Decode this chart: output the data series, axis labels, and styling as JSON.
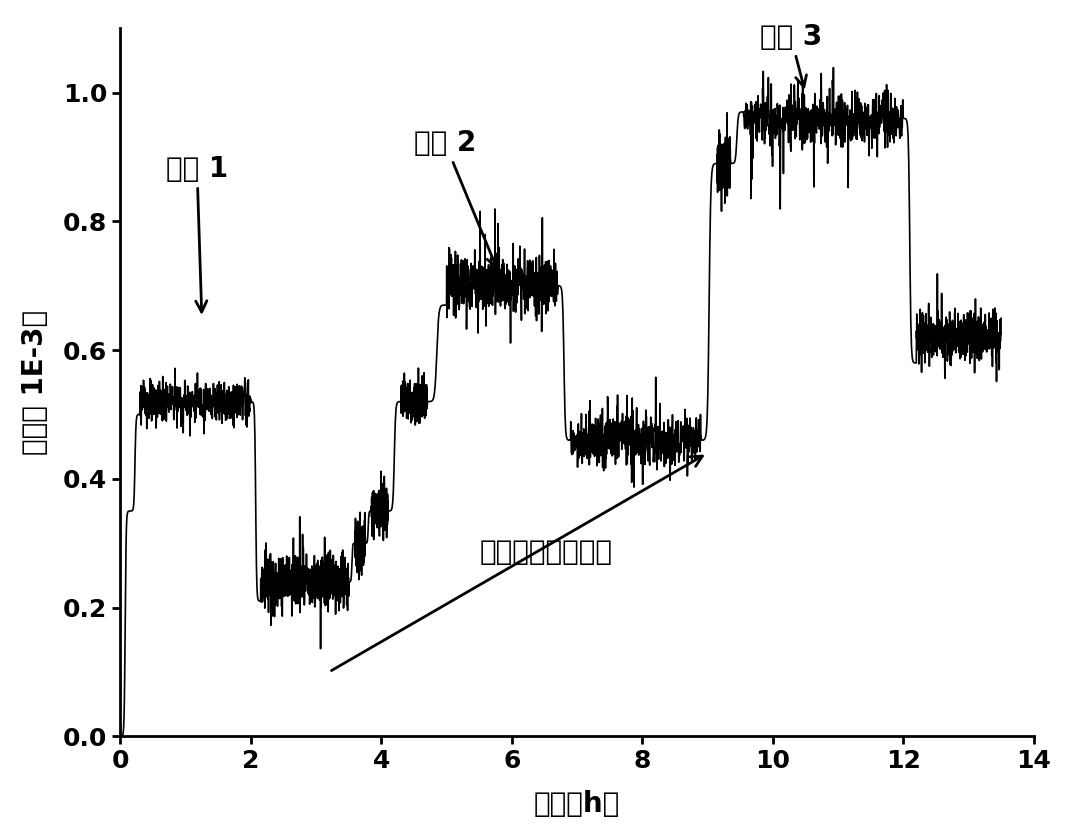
{
  "xlabel": "时间（h）",
  "ylabel": "应变（ 1E-3）",
  "xlim": [
    0,
    14
  ],
  "ylim": [
    0.0,
    1.1
  ],
  "xticks": [
    0,
    2,
    4,
    6,
    8,
    10,
    12,
    14
  ],
  "yticks": [
    0.0,
    0.2,
    0.4,
    0.6,
    0.8,
    1.0
  ],
  "cycle1_label": "循环 1",
  "cycle2_label": "循环 2",
  "cycle3_label": "循环 3",
  "arrow_label": "塑性变形逐渐增长",
  "line_color": "#000000",
  "background_color": "#ffffff",
  "label_fontsize": 20,
  "tick_fontsize": 18,
  "annotation_fontsize": 20
}
